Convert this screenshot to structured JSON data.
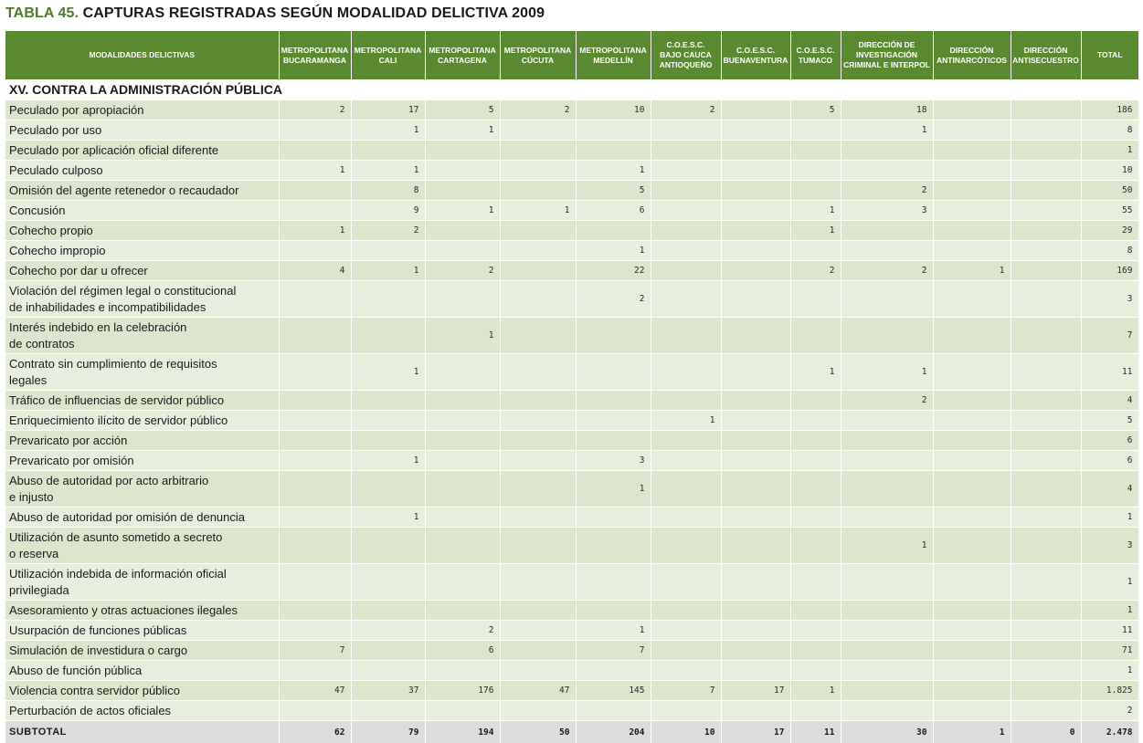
{
  "title": {
    "number": "TABLA 45.",
    "text": "CAPTURAS REGISTRADAS SEGÚN MODALIDAD DELICTIVA 2009"
  },
  "headers": [
    [
      "MODALIDADES DELICTIVAS"
    ],
    [
      "METROPOLITANA",
      "BUCARAMANGA"
    ],
    [
      "METROPOLITANA",
      "CALI"
    ],
    [
      "METROPOLITANA",
      "CARTAGENA"
    ],
    [
      "METROPOLITANA",
      "CÚCUTA"
    ],
    [
      "METROPOLITANA",
      "MEDELLÍN"
    ],
    [
      "C.O.E.S.C.",
      "BAJO CAUCA",
      "ANTIOQUEÑO"
    ],
    [
      "C.O.E.S.C.",
      "BUENAVENTURA"
    ],
    [
      "C.O.E.S.C.",
      "TUMACO"
    ],
    [
      "DIRECCIÓN DE",
      "INVESTIGACIÓN",
      "CRIMINAL E INTERPOL"
    ],
    [
      "DIRECCIÓN",
      "ANTINARCÓTICOS"
    ],
    [
      "DIRECCIÓN",
      "ANTISECUESTRO"
    ],
    [
      "TOTAL"
    ]
  ],
  "section": "XV. CONTRA LA ADMINISTRACIÓN PÚBLICA",
  "rows": [
    {
      "label": [
        "Peculado por apropiación"
      ],
      "values": [
        "2",
        "17",
        "5",
        "2",
        "10",
        "2",
        "",
        "5",
        "18",
        "",
        "",
        "186"
      ]
    },
    {
      "label": [
        "Peculado por uso"
      ],
      "values": [
        "",
        "1",
        "1",
        "",
        "",
        "",
        "",
        "",
        "1",
        "",
        "",
        "8"
      ]
    },
    {
      "label": [
        "Peculado por aplicación oficial diferente"
      ],
      "values": [
        "",
        "",
        "",
        "",
        "",
        "",
        "",
        "",
        "",
        "",
        "",
        "1"
      ]
    },
    {
      "label": [
        "Peculado culposo"
      ],
      "values": [
        "1",
        "1",
        "",
        "",
        "1",
        "",
        "",
        "",
        "",
        "",
        "",
        "10"
      ]
    },
    {
      "label": [
        "Omisión del agente retenedor o recaudador"
      ],
      "values": [
        "",
        "8",
        "",
        "",
        "5",
        "",
        "",
        "",
        "2",
        "",
        "",
        "50"
      ]
    },
    {
      "label": [
        "Concusión"
      ],
      "values": [
        "",
        "9",
        "1",
        "1",
        "6",
        "",
        "",
        "1",
        "3",
        "",
        "",
        "55"
      ]
    },
    {
      "label": [
        "Cohecho propio"
      ],
      "values": [
        "1",
        "2",
        "",
        "",
        "",
        "",
        "",
        "1",
        "",
        "",
        "",
        "29"
      ]
    },
    {
      "label": [
        "Cohecho impropio"
      ],
      "values": [
        "",
        "",
        "",
        "",
        "1",
        "",
        "",
        "",
        "",
        "",
        "",
        "8"
      ]
    },
    {
      "label": [
        "Cohecho por dar u ofrecer"
      ],
      "values": [
        "4",
        "1",
        "2",
        "",
        "22",
        "",
        "",
        "2",
        "2",
        "1",
        "",
        "169"
      ]
    },
    {
      "label": [
        "Violación del régimen legal o constitucional",
        "de inhabilidades e incompatibilidades"
      ],
      "values": [
        "",
        "",
        "",
        "",
        "2",
        "",
        "",
        "",
        "",
        "",
        "",
        "3"
      ]
    },
    {
      "label": [
        "Interés indebido en la celebración",
        "de contratos"
      ],
      "values": [
        "",
        "",
        "1",
        "",
        "",
        "",
        "",
        "",
        "",
        "",
        "",
        "7"
      ]
    },
    {
      "label": [
        "Contrato sin cumplimiento de requisitos",
        "legales"
      ],
      "values": [
        "",
        "1",
        "",
        "",
        "",
        "",
        "",
        "1",
        "1",
        "",
        "",
        "11"
      ]
    },
    {
      "label": [
        "Tráfico de influencias de servidor público"
      ],
      "values": [
        "",
        "",
        "",
        "",
        "",
        "",
        "",
        "",
        "2",
        "",
        "",
        "4"
      ]
    },
    {
      "label": [
        "Enriquecimiento ilícito de servidor público"
      ],
      "values": [
        "",
        "",
        "",
        "",
        "",
        "1",
        "",
        "",
        "",
        "",
        "",
        "5"
      ]
    },
    {
      "label": [
        "Prevaricato por acción"
      ],
      "values": [
        "",
        "",
        "",
        "",
        "",
        "",
        "",
        "",
        "",
        "",
        "",
        "6"
      ]
    },
    {
      "label": [
        "Prevaricato por omisión"
      ],
      "values": [
        "",
        "1",
        "",
        "",
        "3",
        "",
        "",
        "",
        "",
        "",
        "",
        "6"
      ]
    },
    {
      "label": [
        "Abuso de autoridad por acto arbitrario",
        "e injusto"
      ],
      "values": [
        "",
        "",
        "",
        "",
        "1",
        "",
        "",
        "",
        "",
        "",
        "",
        "4"
      ]
    },
    {
      "label": [
        "Abuso de autoridad por omisión de denuncia"
      ],
      "values": [
        "",
        "1",
        "",
        "",
        "",
        "",
        "",
        "",
        "",
        "",
        "",
        "1"
      ]
    },
    {
      "label": [
        "Utilización de asunto sometido a secreto",
        "o reserva"
      ],
      "values": [
        "",
        "",
        "",
        "",
        "",
        "",
        "",
        "",
        "1",
        "",
        "",
        "3"
      ]
    },
    {
      "label": [
        "Utilización indebida de información oficial",
        "privilegiada"
      ],
      "values": [
        "",
        "",
        "",
        "",
        "",
        "",
        "",
        "",
        "",
        "",
        "",
        "1"
      ]
    },
    {
      "label": [
        "Asesoramiento y otras actuaciones ilegales"
      ],
      "values": [
        "",
        "",
        "",
        "",
        "",
        "",
        "",
        "",
        "",
        "",
        "",
        "1"
      ]
    },
    {
      "label": [
        "Usurpación de funciones públicas"
      ],
      "values": [
        "",
        "",
        "2",
        "",
        "1",
        "",
        "",
        "",
        "",
        "",
        "",
        "11"
      ]
    },
    {
      "label": [
        "Simulación de investidura o cargo"
      ],
      "values": [
        "7",
        "",
        "6",
        "",
        "7",
        "",
        "",
        "",
        "",
        "",
        "",
        "71"
      ]
    },
    {
      "label": [
        "Abuso de función pública"
      ],
      "values": [
        "",
        "",
        "",
        "",
        "",
        "",
        "",
        "",
        "",
        "",
        "",
        "1"
      ]
    },
    {
      "label": [
        "Violencia contra servidor público"
      ],
      "values": [
        "47",
        "37",
        "176",
        "47",
        "145",
        "7",
        "17",
        "1",
        "",
        "",
        "",
        "1.825"
      ]
    },
    {
      "label": [
        "Perturbación de actos oficiales"
      ],
      "values": [
        "",
        "",
        "",
        "",
        "",
        "",
        "",
        "",
        "",
        "",
        "",
        "2"
      ]
    }
  ],
  "subtotal": {
    "label": "SUBTOTAL",
    "values": [
      "62",
      "79",
      "194",
      "50",
      "204",
      "10",
      "17",
      "11",
      "30",
      "1",
      "0",
      "2.478"
    ]
  }
}
